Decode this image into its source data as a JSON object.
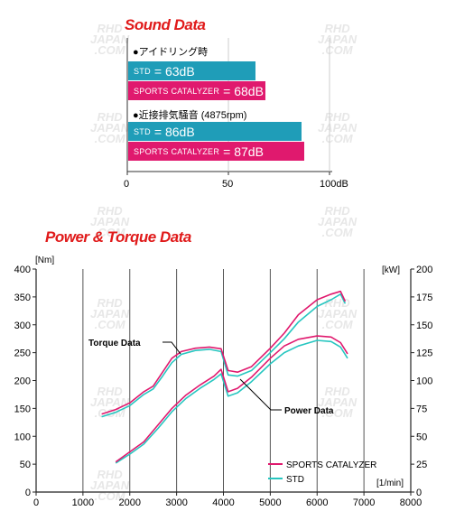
{
  "sound": {
    "title": "Sound Data",
    "groups": [
      {
        "label": "●アイドリング時",
        "bars": [
          {
            "small": "STD",
            "text": "= 63dB",
            "value": 63,
            "color": "#1f9db8"
          },
          {
            "small": "SPORTS CATALYZER",
            "text": "= 68dB",
            "value": 68,
            "color": "#e0196e"
          }
        ]
      },
      {
        "label": "●近接排気騒音 (4875rpm)",
        "bars": [
          {
            "small": "STD",
            "text": "= 86dB",
            "value": 86,
            "color": "#1f9db8"
          },
          {
            "small": "SPORTS CATALYZER",
            "text": "= 87dB",
            "value": 87,
            "color": "#e0196e"
          }
        ]
      }
    ],
    "axis_ticks": [
      "0",
      "50",
      "100"
    ],
    "axis_unit": "dB"
  },
  "chart_data": {
    "type": "line",
    "title": "Power & Torque Data",
    "x_ticks": [
      0,
      1000,
      2000,
      3000,
      4000,
      5000,
      6000,
      7000,
      8000
    ],
    "x_unit": "[1/min]",
    "xlim": [
      0,
      8000
    ],
    "y_left_unit": "[Nm]",
    "y_left_ticks": [
      0,
      50,
      100,
      150,
      200,
      250,
      300,
      350,
      400
    ],
    "y_left_lim": [
      0,
      400
    ],
    "y_right_unit": "[kW]",
    "y_right_ticks": [
      0,
      25,
      50,
      75,
      100,
      125,
      150,
      175,
      200
    ],
    "y_right_lim": [
      0,
      200
    ],
    "annotations": {
      "torque": "Torque Data",
      "power": "Power Data"
    },
    "series": [
      {
        "name": "SPORTS CATALYZER",
        "color": "#e0196e",
        "axis": "left",
        "role": "torque",
        "x": [
          1400,
          1700,
          2000,
          2300,
          2500,
          2700,
          2900,
          3100,
          3400,
          3700,
          3950,
          4100,
          4300,
          4600,
          5000,
          5300,
          5600,
          6000,
          6300,
          6500,
          6600
        ],
        "y": [
          140,
          148,
          160,
          180,
          190,
          215,
          240,
          252,
          258,
          260,
          257,
          218,
          215,
          225,
          258,
          285,
          318,
          345,
          355,
          360,
          342
        ]
      },
      {
        "name": "STD",
        "color": "#27c6c0",
        "axis": "left",
        "role": "torque",
        "x": [
          1400,
          1700,
          2000,
          2300,
          2500,
          2700,
          2900,
          3100,
          3400,
          3700,
          3950,
          4100,
          4300,
          4600,
          5000,
          5300,
          5600,
          6000,
          6300,
          6500,
          6600
        ],
        "y": [
          135,
          143,
          155,
          175,
          185,
          208,
          232,
          247,
          254,
          256,
          252,
          210,
          208,
          218,
          250,
          275,
          305,
          333,
          345,
          355,
          338
        ]
      },
      {
        "name": "SPORTS CATALYZER",
        "color": "#e0196e",
        "axis": "right",
        "role": "power",
        "x": [
          1700,
          2000,
          2300,
          2600,
          2900,
          3200,
          3500,
          3800,
          3950,
          4100,
          4300,
          4600,
          5000,
          5300,
          5600,
          6000,
          6300,
          6500,
          6650
        ],
        "y": [
          27,
          36,
          45,
          60,
          75,
          87,
          96,
          104,
          110,
          90,
          93,
          103,
          120,
          131,
          137,
          140,
          139,
          134,
          124
        ]
      },
      {
        "name": "STD",
        "color": "#27c6c0",
        "axis": "right",
        "role": "power",
        "x": [
          1700,
          2000,
          2300,
          2600,
          2900,
          3200,
          3500,
          3800,
          3950,
          4100,
          4300,
          4600,
          5000,
          5300,
          5600,
          6000,
          6300,
          6500,
          6650
        ],
        "y": [
          26,
          34,
          43,
          57,
          72,
          84,
          93,
          101,
          106,
          86,
          89,
          99,
          115,
          125,
          131,
          136,
          135,
          130,
          120
        ]
      }
    ]
  }
}
